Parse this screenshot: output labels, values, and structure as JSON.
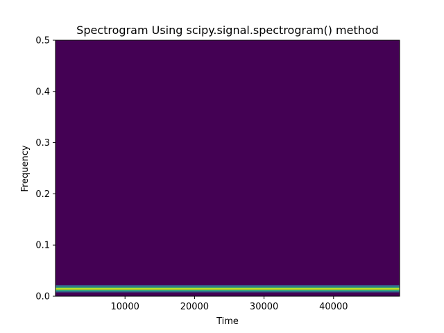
{
  "chart_data": {
    "type": "heatmap",
    "title": "Spectrogram Using scipy.signal.spectrogram() method",
    "xlabel": "Time",
    "ylabel": "Frequency",
    "xlim": [
      0,
      49500
    ],
    "ylim": [
      0.0,
      0.5
    ],
    "x_ticks": [
      10000,
      20000,
      30000,
      40000
    ],
    "x_tick_labels": [
      "10000",
      "20000",
      "30000",
      "40000"
    ],
    "y_ticks": [
      0.0,
      0.1,
      0.2,
      0.3,
      0.4,
      0.5
    ],
    "y_tick_labels": [
      "0.0",
      "0.1",
      "0.2",
      "0.3",
      "0.4",
      "0.5"
    ],
    "colormap": "viridis",
    "background_color": "#440154",
    "grid": false,
    "legend": "none",
    "bands": [
      {
        "freq_low": 0.0075,
        "freq_high": 0.0105,
        "color": "#31688e"
      },
      {
        "freq_low": 0.0105,
        "freq_high": 0.0125,
        "color": "#35b779"
      },
      {
        "freq_low": 0.0125,
        "freq_high": 0.0165,
        "color": "#b5de2b"
      },
      {
        "freq_low": 0.0165,
        "freq_high": 0.0185,
        "color": "#35b779"
      },
      {
        "freq_low": 0.0185,
        "freq_high": 0.0215,
        "color": "#31688e"
      }
    ]
  }
}
